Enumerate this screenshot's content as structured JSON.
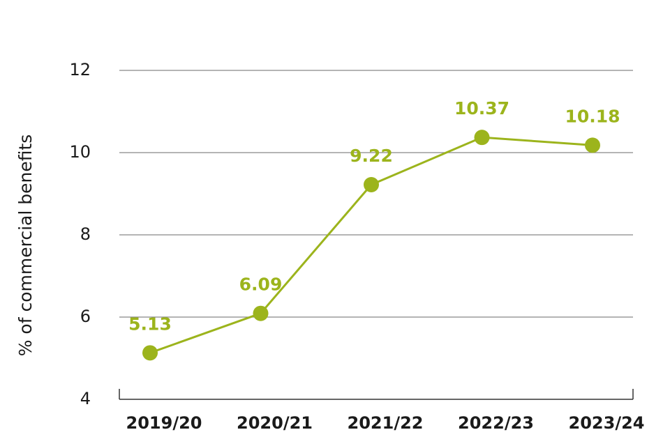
{
  "chart_data": {
    "type": "line",
    "y_label": "% of commercial benefits",
    "categories": [
      "2019/20",
      "2020/21",
      "2021/22",
      "2022/23",
      "2023/24"
    ],
    "values": [
      5.13,
      6.09,
      9.22,
      10.37,
      10.18
    ],
    "color": "#9cb41c",
    "ylim": [
      4,
      12
    ],
    "yticks": [
      4,
      6,
      8,
      10,
      12
    ],
    "grid": true
  }
}
